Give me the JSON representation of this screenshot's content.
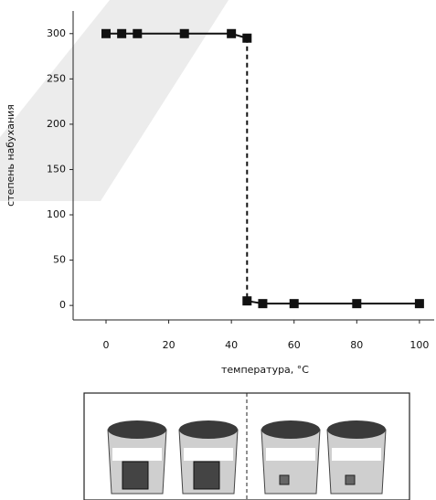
{
  "chart_data": {
    "type": "line",
    "x_label": "температура, °C",
    "y_label": "степень набухания",
    "xlim": [
      -10.5,
      104.7
    ],
    "xticks": [
      0,
      20,
      40,
      60,
      80,
      100
    ],
    "ylim": [
      -16,
      325
    ],
    "yticks": [
      0,
      50,
      100,
      150,
      200,
      250,
      300
    ],
    "series": [
      {
        "color": "#111111",
        "x": [
          0,
          5,
          10,
          25,
          40,
          45
        ],
        "values": [
          300,
          300,
          300,
          300,
          300,
          295
        ]
      },
      {
        "color": "#111111",
        "x": [
          45,
          50,
          60,
          80,
          100
        ],
        "values": [
          5,
          2,
          2,
          2,
          2
        ]
      }
    ],
    "join_style": "dashed"
  }
}
